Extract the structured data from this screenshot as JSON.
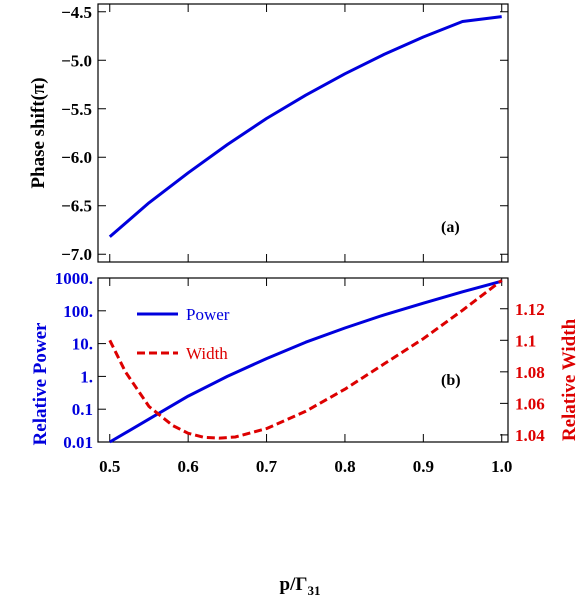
{
  "chart_data": [
    {
      "type": "line",
      "panel_label": "(a)",
      "ylabel": "Phase shift(π)",
      "xlim": [
        0.485,
        1.008
      ],
      "ylim": [
        -7.08,
        -4.42
      ],
      "yticks": [
        -7.0,
        -6.5,
        -6.0,
        -5.5,
        -5.0,
        -4.5
      ],
      "ytick_labels": [
        "−7.0",
        "−6.5",
        "−6.0",
        "−5.5",
        "−5.0",
        "−4.5"
      ],
      "series": [
        {
          "color": "#0000dd",
          "dash": "solid",
          "x": [
            0.5,
            0.55,
            0.6,
            0.65,
            0.7,
            0.75,
            0.8,
            0.85,
            0.9,
            0.95,
            1.0
          ],
          "y": [
            -6.82,
            -6.47,
            -6.16,
            -5.87,
            -5.6,
            -5.36,
            -5.14,
            -4.94,
            -4.76,
            -4.6,
            -4.55
          ]
        }
      ]
    },
    {
      "type": "line",
      "panel_label": "(b)",
      "xlabel": "p/Γ",
      "xlabel_sub": "31",
      "xlim": [
        0.485,
        1.008
      ],
      "xticks": [
        0.5,
        0.6,
        0.7,
        0.8,
        0.9,
        1.0
      ],
      "xtick_labels": [
        "0.5",
        "0.6",
        "0.7",
        "0.8",
        "0.9",
        "1.0"
      ],
      "y_left": {
        "label": "Relative Power",
        "scale": "log",
        "lim": [
          0.01,
          1000
        ],
        "ticks": [
          0.01,
          0.1,
          1,
          10,
          100,
          1000
        ],
        "tick_labels": [
          "0.01",
          "0.1",
          "1.",
          "10.",
          "100.",
          "1000."
        ],
        "color": "#0000dd"
      },
      "y_right": {
        "label": "Relative Width",
        "scale": "linear",
        "lim": [
          1.0355,
          1.1395
        ],
        "ticks": [
          1.04,
          1.06,
          1.08,
          1.1,
          1.12
        ],
        "tick_labels": [
          "1.04",
          "1.06",
          "1.08",
          "1.1",
          "1.12"
        ],
        "color": "#dd0000"
      },
      "legend": {
        "placement": "top-left",
        "entries": [
          "Power",
          "Width"
        ]
      },
      "series": [
        {
          "name": "Power",
          "axis": "left",
          "color": "#0000dd",
          "dash": "solid",
          "x": [
            0.5,
            0.55,
            0.6,
            0.65,
            0.7,
            0.75,
            0.8,
            0.85,
            0.9,
            0.95,
            1.0
          ],
          "y": [
            0.01,
            0.05,
            0.25,
            1.0,
            3.5,
            11,
            30,
            75,
            170,
            380,
            800
          ]
        },
        {
          "name": "Width",
          "axis": "right",
          "color": "#dd0000",
          "dash": "dashed",
          "x": [
            0.5,
            0.52,
            0.55,
            0.58,
            0.6,
            0.62,
            0.64,
            0.66,
            0.7,
            0.75,
            0.8,
            0.85,
            0.9,
            0.95,
            1.0
          ],
          "y": [
            1.1,
            1.08,
            1.058,
            1.046,
            1.041,
            1.0385,
            1.038,
            1.0387,
            1.044,
            1.055,
            1.069,
            1.085,
            1.101,
            1.119,
            1.138
          ]
        }
      ]
    }
  ]
}
